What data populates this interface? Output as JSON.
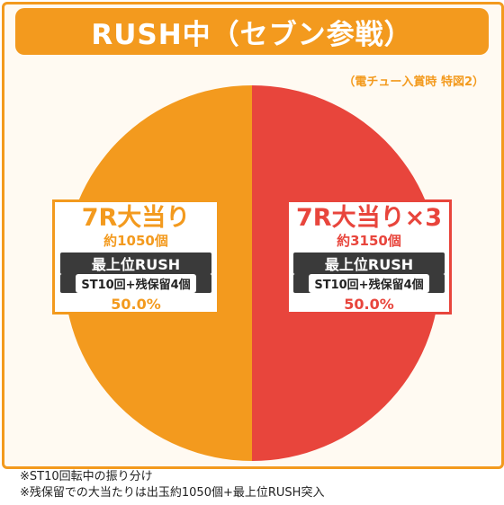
{
  "header": {
    "title": "RUSH中（セブン参戦）"
  },
  "note_top": "（電チュー入賞時 特図2）",
  "chart_data": {
    "type": "pie",
    "title": "RUSH中（セブン参戦）",
    "slices": [
      {
        "name": "7R大当り",
        "payout": "約1050個",
        "rush": "最上位RUSH",
        "rush_detail": "ST10回+残保留4個",
        "value": 50.0,
        "percent_label": "50.0%",
        "color": "#f39a1e"
      },
      {
        "name": "7R大当り×3",
        "payout": "約3150個",
        "rush": "最上位RUSH",
        "rush_detail": "ST10回+残保留4個",
        "value": 50.0,
        "percent_label": "50.0%",
        "color": "#e8453c"
      }
    ]
  },
  "footnotes": [
    "※ST10回転中の振り分け",
    "※残保留での大当たりは出玉約1050個+最上位RUSH突入"
  ]
}
